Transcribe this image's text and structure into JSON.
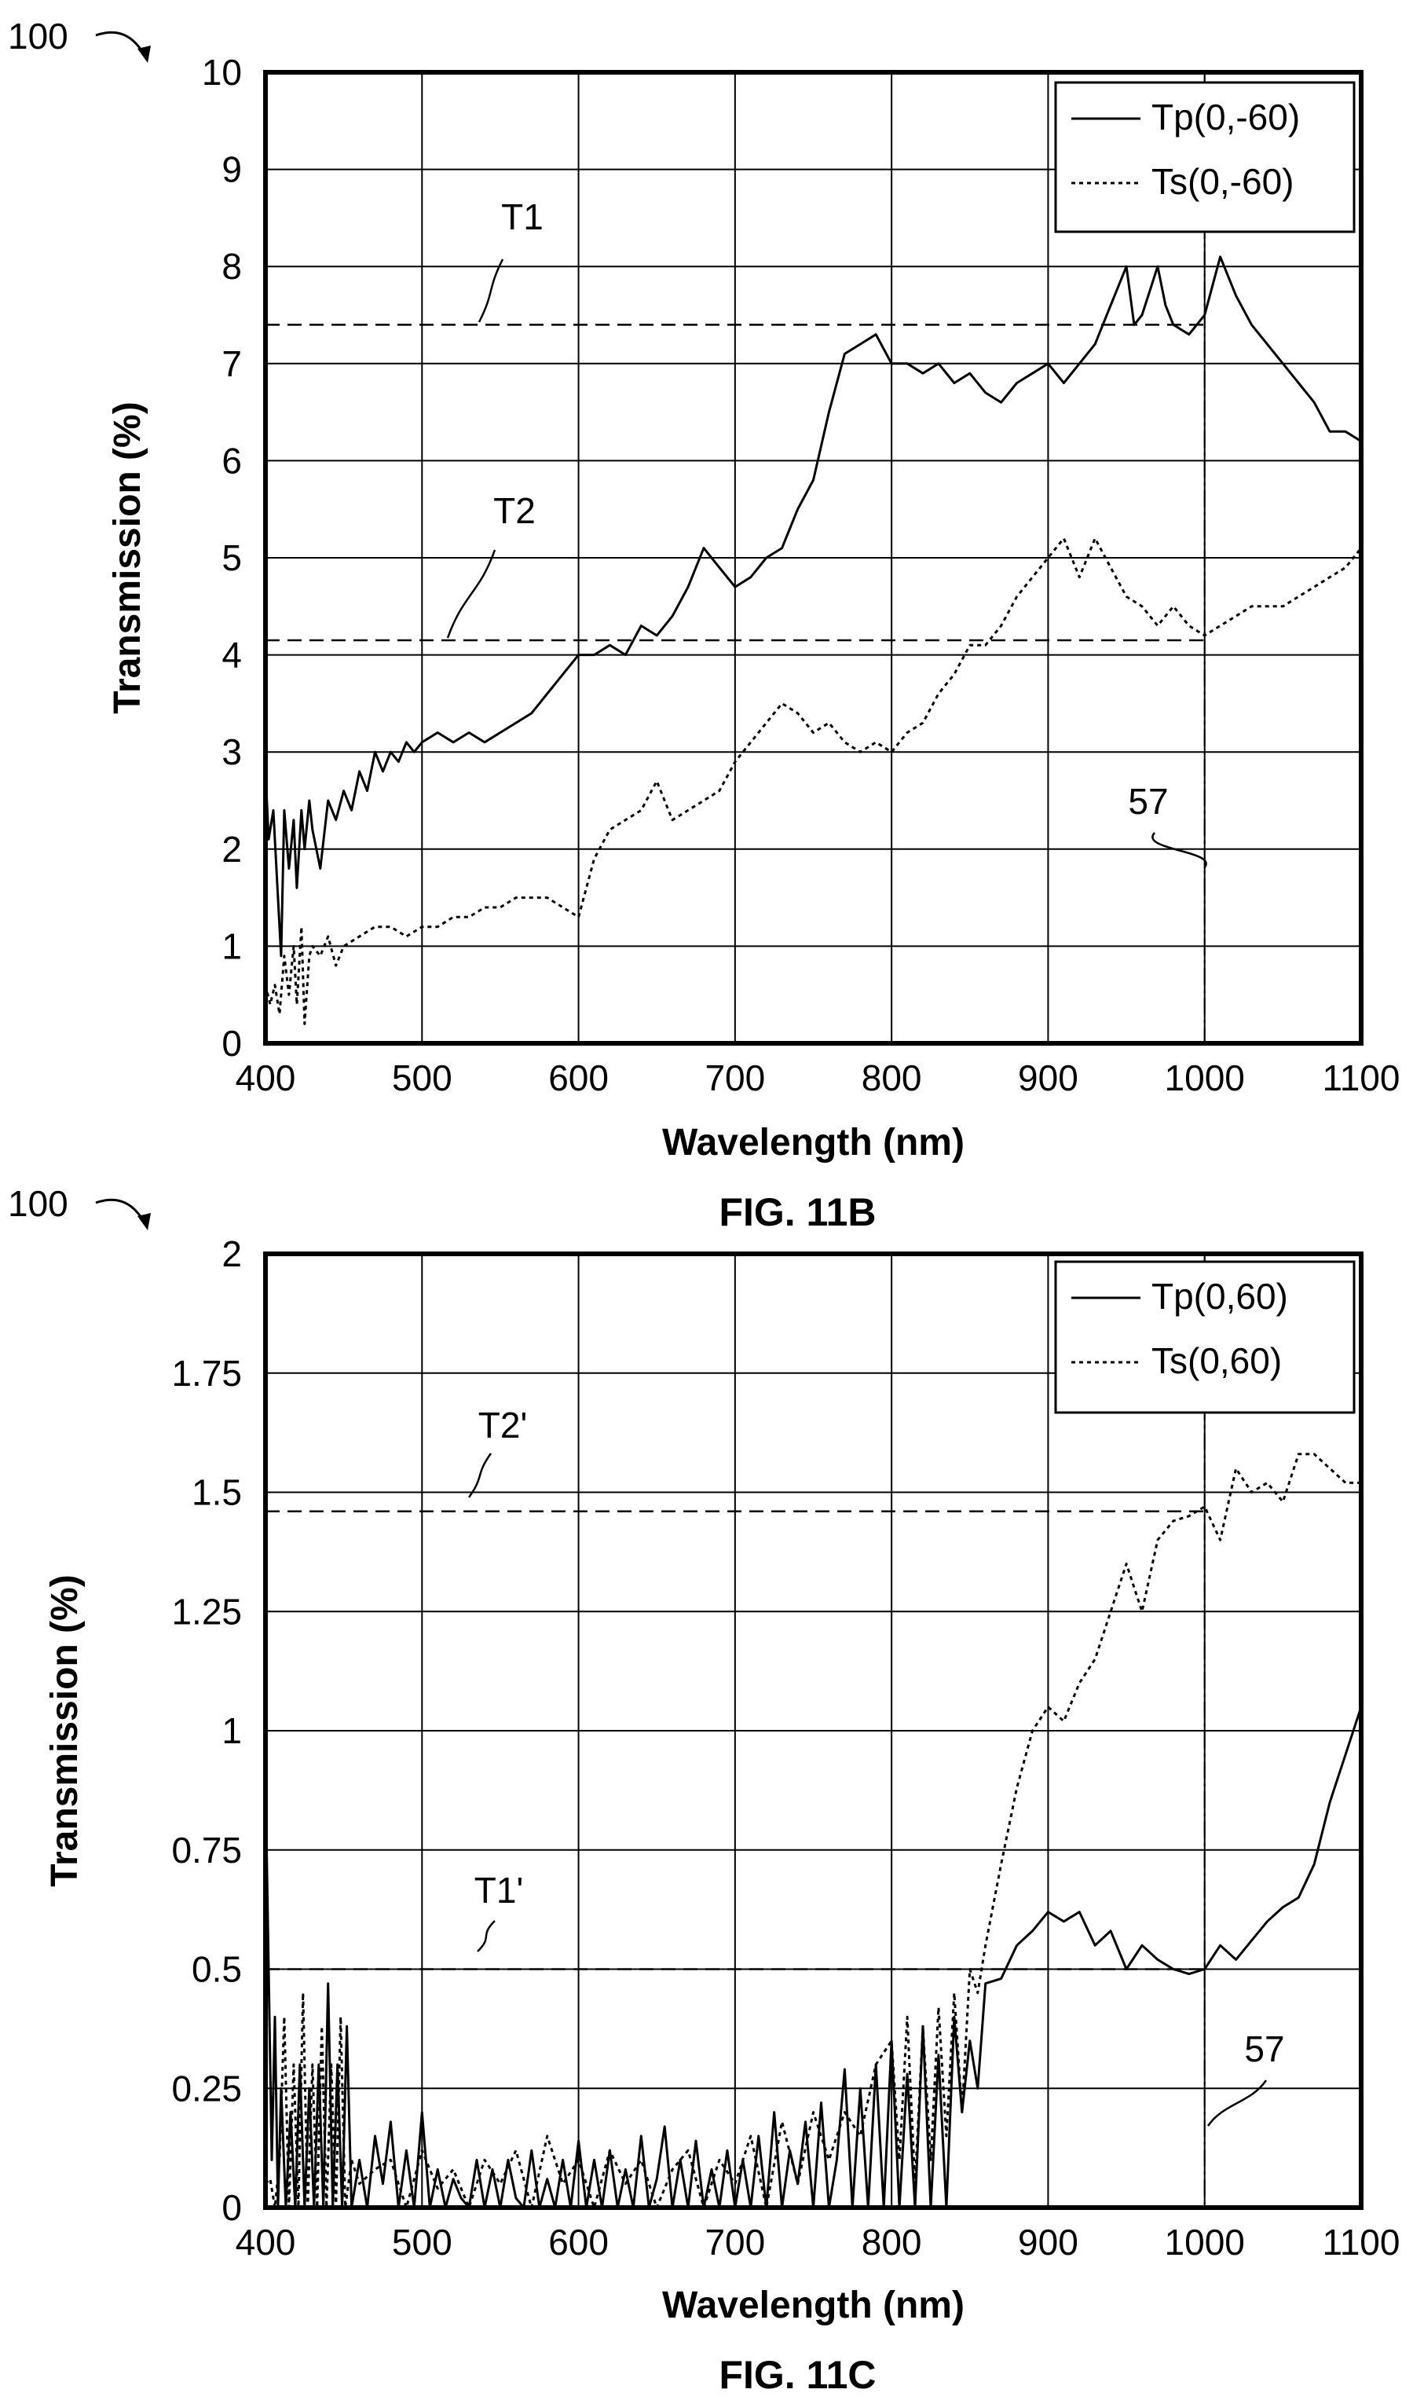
{
  "figure_ref": "100",
  "chart_data": [
    {
      "type": "line",
      "fig_label": "FIG. 11B",
      "xlabel": "Wavelength (nm)",
      "ylabel": "Transmission (%)",
      "xlim": [
        400,
        1100
      ],
      "ylim": [
        0,
        10
      ],
      "xticks": [
        "400",
        "500",
        "600",
        "700",
        "800",
        "900",
        "1000",
        "1100"
      ],
      "yticks": [
        "0",
        "1",
        "2",
        "3",
        "4",
        "5",
        "6",
        "7",
        "8",
        "9",
        "10"
      ],
      "grid": true,
      "legend_position": "top-right",
      "series": [
        {
          "name": "Tp(0,-60)",
          "style": "solid",
          "x": [
            400,
            402,
            405,
            408,
            410,
            412,
            415,
            418,
            420,
            423,
            425,
            428,
            430,
            435,
            440,
            445,
            450,
            455,
            460,
            465,
            470,
            475,
            480,
            485,
            490,
            495,
            500,
            510,
            520,
            530,
            540,
            550,
            560,
            570,
            580,
            590,
            600,
            610,
            620,
            630,
            640,
            650,
            660,
            670,
            680,
            690,
            700,
            710,
            720,
            730,
            740,
            750,
            760,
            770,
            780,
            790,
            800,
            810,
            820,
            830,
            840,
            850,
            860,
            870,
            880,
            890,
            900,
            910,
            920,
            930,
            940,
            950,
            955,
            960,
            970,
            975,
            980,
            990,
            1000,
            1010,
            1020,
            1030,
            1040,
            1050,
            1060,
            1070,
            1080,
            1090,
            1100
          ],
          "values": [
            2.8,
            2.1,
            2.4,
            1.5,
            0.9,
            2.4,
            1.8,
            2.3,
            1.6,
            2.4,
            2.0,
            2.5,
            2.2,
            1.8,
            2.5,
            2.3,
            2.6,
            2.4,
            2.8,
            2.6,
            3.0,
            2.8,
            3.0,
            2.9,
            3.1,
            3.0,
            3.1,
            3.2,
            3.1,
            3.2,
            3.1,
            3.2,
            3.3,
            3.4,
            3.6,
            3.8,
            4.0,
            4.0,
            4.1,
            4.0,
            4.3,
            4.2,
            4.4,
            4.7,
            5.1,
            4.9,
            4.7,
            4.8,
            5.0,
            5.1,
            5.5,
            5.8,
            6.5,
            7.1,
            7.2,
            7.3,
            7.0,
            7.0,
            6.9,
            7.0,
            6.8,
            6.9,
            6.7,
            6.6,
            6.8,
            6.9,
            7.0,
            6.8,
            7.0,
            7.2,
            7.6,
            8.0,
            7.4,
            7.5,
            8.0,
            7.6,
            7.4,
            7.3,
            7.5,
            8.1,
            7.7,
            7.4,
            7.2,
            7.0,
            6.8,
            6.6,
            6.3,
            6.3,
            6.2
          ]
        },
        {
          "name": "Ts(0,-60)",
          "style": "dotted",
          "x": [
            400,
            403,
            406,
            409,
            412,
            415,
            418,
            420,
            423,
            425,
            428,
            430,
            435,
            440,
            445,
            450,
            460,
            470,
            480,
            490,
            500,
            510,
            520,
            530,
            540,
            550,
            560,
            570,
            580,
            590,
            600,
            610,
            620,
            630,
            640,
            650,
            660,
            670,
            680,
            690,
            700,
            710,
            720,
            730,
            740,
            750,
            760,
            770,
            780,
            790,
            800,
            810,
            820,
            830,
            840,
            850,
            860,
            870,
            880,
            890,
            900,
            910,
            920,
            930,
            940,
            950,
            960,
            970,
            980,
            990,
            1000,
            1010,
            1020,
            1030,
            1040,
            1050,
            1060,
            1070,
            1080,
            1090,
            1100
          ],
          "values": [
            0.6,
            0.4,
            0.6,
            0.3,
            0.9,
            0.5,
            1.0,
            0.4,
            1.2,
            0.2,
            0.9,
            1.0,
            0.9,
            1.1,
            0.8,
            1.0,
            1.1,
            1.2,
            1.2,
            1.1,
            1.2,
            1.2,
            1.3,
            1.3,
            1.4,
            1.4,
            1.5,
            1.5,
            1.5,
            1.4,
            1.3,
            1.9,
            2.2,
            2.3,
            2.4,
            2.7,
            2.3,
            2.4,
            2.5,
            2.6,
            2.9,
            3.1,
            3.3,
            3.5,
            3.4,
            3.2,
            3.3,
            3.1,
            3.0,
            3.1,
            3.0,
            3.2,
            3.3,
            3.6,
            3.8,
            4.1,
            4.1,
            4.3,
            4.6,
            4.8,
            5.0,
            5.2,
            4.8,
            5.2,
            4.9,
            4.6,
            4.5,
            4.3,
            4.5,
            4.3,
            4.2,
            4.3,
            4.4,
            4.5,
            4.5,
            4.5,
            4.6,
            4.7,
            4.8,
            4.9,
            5.1
          ]
        }
      ],
      "reference_lines": [
        {
          "label": "T1",
          "y": 7.4,
          "x_from": 400,
          "x_to": 1000,
          "style": "dashed"
        },
        {
          "label": "T2",
          "y": 4.15,
          "x_from": 400,
          "x_to": 1000,
          "style": "dashed"
        },
        {
          "label": "57",
          "x": 1000,
          "style": "dash-dot",
          "orientation": "vertical"
        }
      ]
    },
    {
      "type": "line",
      "fig_label": "FIG. 11C",
      "xlabel": "Wavelength (nm)",
      "ylabel": "Transmission (%)",
      "xlim": [
        400,
        1100
      ],
      "ylim": [
        0,
        2
      ],
      "xticks": [
        "400",
        "500",
        "600",
        "700",
        "800",
        "900",
        "1000",
        "1100"
      ],
      "yticks": [
        "0",
        "0.25",
        "0.5",
        "0.75",
        "1",
        "1.25",
        "1.5",
        "1.75",
        "2"
      ],
      "grid": true,
      "legend_position": "top-right",
      "series": [
        {
          "name": "Tp(0,60)",
          "style": "solid",
          "x": [
            400,
            402,
            404,
            406,
            408,
            410,
            413,
            416,
            419,
            422,
            425,
            428,
            431,
            434,
            437,
            440,
            443,
            446,
            449,
            452,
            455,
            460,
            465,
            470,
            475,
            480,
            485,
            490,
            495,
            500,
            505,
            510,
            515,
            520,
            525,
            530,
            535,
            540,
            545,
            550,
            555,
            560,
            565,
            570,
            575,
            580,
            585,
            590,
            595,
            600,
            605,
            610,
            615,
            620,
            625,
            630,
            635,
            640,
            645,
            650,
            655,
            660,
            665,
            670,
            675,
            680,
            685,
            690,
            695,
            700,
            705,
            710,
            715,
            720,
            725,
            730,
            735,
            740,
            745,
            750,
            755,
            760,
            765,
            770,
            775,
            780,
            785,
            790,
            795,
            800,
            805,
            810,
            815,
            820,
            825,
            830,
            835,
            840,
            845,
            850,
            855,
            860,
            870,
            880,
            890,
            900,
            910,
            920,
            930,
            940,
            950,
            960,
            970,
            980,
            990,
            1000,
            1010,
            1020,
            1030,
            1040,
            1050,
            1060,
            1070,
            1080,
            1090,
            1100
          ],
          "values": [
            0.9,
            0.5,
            0.1,
            0.4,
            0.0,
            0.25,
            0.0,
            0.2,
            0.0,
            0.3,
            0.0,
            0.25,
            0.0,
            0.3,
            0.0,
            0.47,
            0.0,
            0.3,
            0.0,
            0.38,
            0.0,
            0.1,
            0.0,
            0.15,
            0.05,
            0.18,
            0.0,
            0.12,
            0.0,
            0.2,
            0.0,
            0.08,
            0.0,
            0.06,
            0.02,
            0.0,
            0.1,
            0.0,
            0.08,
            0.0,
            0.1,
            0.02,
            0.0,
            0.12,
            0.0,
            0.06,
            0.0,
            0.1,
            0.0,
            0.14,
            0.0,
            0.1,
            0.0,
            0.12,
            0.0,
            0.08,
            0.0,
            0.15,
            0.0,
            0.06,
            0.17,
            0.0,
            0.1,
            0.0,
            0.14,
            0.0,
            0.08,
            0.0,
            0.12,
            0.0,
            0.1,
            0.0,
            0.15,
            0.0,
            0.2,
            0.0,
            0.12,
            0.05,
            0.18,
            0.0,
            0.22,
            0.0,
            0.1,
            0.29,
            0.0,
            0.25,
            0.0,
            0.3,
            0.0,
            0.35,
            0.0,
            0.28,
            0.0,
            0.38,
            0.0,
            0.32,
            0.0,
            0.4,
            0.2,
            0.35,
            0.25,
            0.47,
            0.48,
            0.55,
            0.58,
            0.62,
            0.6,
            0.62,
            0.55,
            0.58,
            0.5,
            0.55,
            0.52,
            0.5,
            0.49,
            0.5,
            0.55,
            0.52,
            0.56,
            0.6,
            0.63,
            0.65,
            0.72,
            0.85,
            0.95,
            1.05
          ]
        },
        {
          "name": "Ts(0,60)",
          "style": "dotted",
          "x": [
            400,
            403,
            406,
            409,
            412,
            415,
            418,
            421,
            424,
            427,
            430,
            433,
            436,
            439,
            442,
            445,
            448,
            451,
            455,
            460,
            470,
            480,
            490,
            500,
            510,
            520,
            530,
            540,
            550,
            560,
            570,
            580,
            590,
            600,
            610,
            620,
            630,
            640,
            650,
            660,
            670,
            680,
            690,
            700,
            710,
            720,
            730,
            740,
            750,
            760,
            770,
            780,
            790,
            800,
            805,
            810,
            815,
            820,
            825,
            830,
            835,
            840,
            845,
            850,
            855,
            860,
            870,
            880,
            890,
            900,
            910,
            920,
            930,
            940,
            950,
            955,
            960,
            970,
            975,
            980,
            990,
            1000,
            1010,
            1020,
            1030,
            1040,
            1050,
            1060,
            1070,
            1080,
            1090,
            1100
          ],
          "values": [
            0.05,
            0.06,
            0.0,
            0.1,
            0.4,
            0.0,
            0.3,
            0.0,
            0.45,
            0.0,
            0.3,
            0.0,
            0.38,
            0.0,
            0.3,
            0.0,
            0.4,
            0.0,
            0.1,
            0.05,
            0.08,
            0.1,
            0.0,
            0.12,
            0.04,
            0.08,
            0.0,
            0.1,
            0.05,
            0.12,
            0.0,
            0.15,
            0.05,
            0.1,
            0.0,
            0.12,
            0.05,
            0.1,
            0.0,
            0.08,
            0.12,
            0.0,
            0.1,
            0.05,
            0.15,
            0.0,
            0.18,
            0.05,
            0.2,
            0.1,
            0.2,
            0.15,
            0.3,
            0.35,
            0.1,
            0.4,
            0.05,
            0.38,
            0.1,
            0.42,
            0.15,
            0.45,
            0.2,
            0.5,
            0.45,
            0.55,
            0.72,
            0.88,
            1.0,
            1.05,
            1.02,
            1.1,
            1.15,
            1.25,
            1.35,
            1.3,
            1.25,
            1.4,
            1.42,
            1.44,
            1.45,
            1.47,
            1.4,
            1.55,
            1.5,
            1.52,
            1.48,
            1.58,
            1.58,
            1.55,
            1.52,
            1.52
          ]
        }
      ],
      "reference_lines": [
        {
          "label": "T2'",
          "y": 1.46,
          "x_from": 400,
          "x_to": 1000,
          "style": "dashed"
        },
        {
          "label": "T1'",
          "y": 0.5,
          "x_from": 400,
          "x_to": 1000,
          "style": "dashed"
        },
        {
          "label": "57",
          "x": 1000,
          "style": "dash-dot",
          "orientation": "vertical"
        }
      ]
    }
  ]
}
